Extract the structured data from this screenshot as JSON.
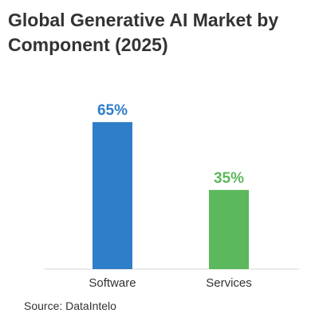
{
  "chart_data": {
    "type": "bar",
    "title": "Global Generative AI Market by Component (2025)",
    "categories": [
      "Software",
      "Services"
    ],
    "values": [
      65,
      35
    ],
    "value_labels": [
      "65%",
      "35%"
    ],
    "colors": [
      "#2f7ec9",
      "#5cb85c"
    ],
    "label_colors": [
      "#2f7ec9",
      "#5cb85c"
    ],
    "ylim": [
      0,
      100
    ],
    "grid": false,
    "legend": "none"
  },
  "source": "Source: DataIntelo"
}
